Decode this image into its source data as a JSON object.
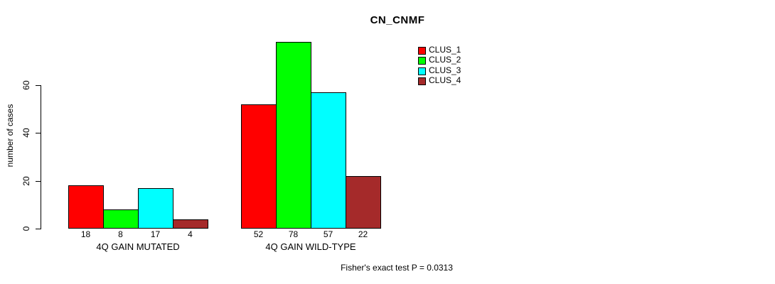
{
  "chart_data": {
    "type": "bar",
    "title": "CN_CNMF",
    "ylabel": "number of cases",
    "yticks": [
      0,
      20,
      40,
      60
    ],
    "ylim": [
      0,
      80
    ],
    "grid": false,
    "legend_position": "top-right",
    "categories": [
      "4Q GAIN MUTATED",
      "4Q GAIN WILD-TYPE"
    ],
    "series": [
      {
        "name": "CLUS_1",
        "color": "#FF0000",
        "values": [
          18,
          52
        ]
      },
      {
        "name": "CLUS_2",
        "color": "#00FF00",
        "values": [
          8,
          78
        ]
      },
      {
        "name": "CLUS_3",
        "color": "#00FFFF",
        "values": [
          17,
          57
        ]
      },
      {
        "name": "CLUS_4",
        "color": "#A52A2A",
        "values": [
          4,
          22
        ]
      }
    ],
    "bar_value_labels": [
      [
        18,
        8,
        17,
        4
      ],
      [
        52,
        78,
        57,
        22
      ]
    ],
    "annotation": "Fisher's exact test P = 0.0313"
  }
}
